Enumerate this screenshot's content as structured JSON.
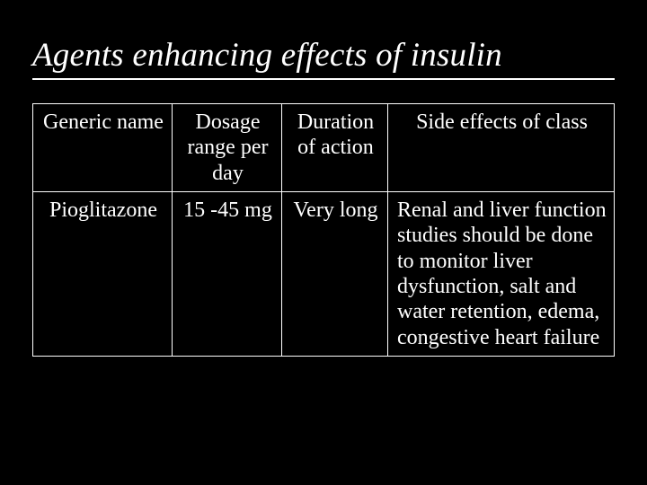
{
  "title": "Agents enhancing effects of insulin",
  "table": {
    "columns": [
      {
        "label": "Generic name",
        "align": "center"
      },
      {
        "label": "Dosage range per day",
        "align": "center"
      },
      {
        "label": "Duration of action",
        "align": "center"
      },
      {
        "label": "Side effects of class",
        "align": "center"
      }
    ],
    "rows": [
      {
        "cells": [
          {
            "value": "Pioglitazone",
            "align": "center"
          },
          {
            "value": "15 -45 mg",
            "align": "center"
          },
          {
            "value": "Very long",
            "align": "center"
          },
          {
            "value": "Renal and liver function studies should be done to monitor liver dysfunction, salt and water retention, edema, congestive heart failure",
            "align": "left"
          }
        ]
      }
    ],
    "border_color": "#ffffff",
    "background_color": "#000000",
    "text_color": "#ffffff",
    "font_family": "Times New Roman",
    "header_fontsize": 24,
    "cell_fontsize": 24
  },
  "title_fontsize": 37,
  "title_color": "#ffffff",
  "title_italic": true
}
